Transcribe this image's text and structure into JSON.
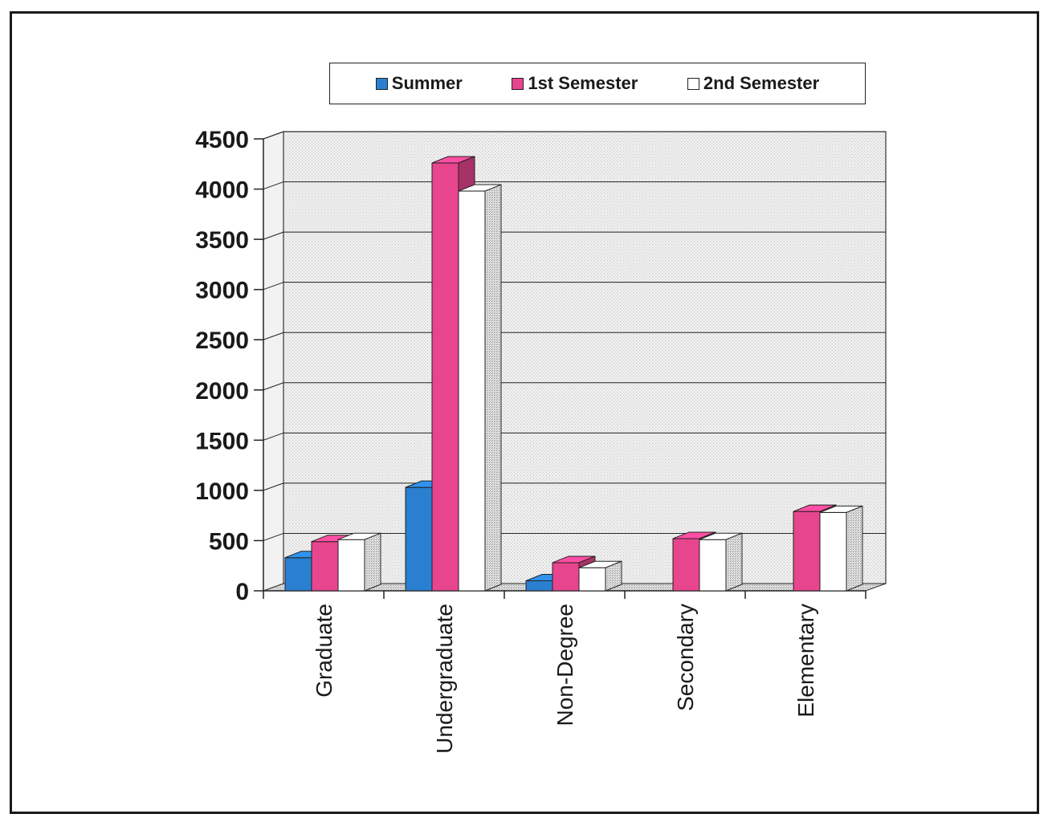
{
  "chart_data": {
    "type": "bar",
    "variant": "3d-clustered-column",
    "categories": [
      "Graduate",
      "Undergraduate",
      "Non-Degree",
      "Secondary",
      "Elementary"
    ],
    "series": [
      {
        "name": "Summer",
        "color": "#2a7fd0",
        "values": [
          330,
          1030,
          100,
          0,
          0
        ]
      },
      {
        "name": "1st Semester",
        "color": "#e8458f",
        "values": [
          490,
          4260,
          280,
          520,
          790
        ]
      },
      {
        "name": "2nd Semester",
        "color": "#ffffff",
        "values": [
          510,
          3980,
          230,
          510,
          780
        ]
      }
    ],
    "y_ticks": [
      "0",
      "500",
      "1000",
      "1500",
      "2000",
      "2500",
      "3000",
      "3500",
      "4000",
      "4500"
    ],
    "ylim": [
      0,
      4500
    ],
    "grid": true,
    "legend_position": "top",
    "title": "",
    "xlabel": "",
    "ylabel": ""
  }
}
